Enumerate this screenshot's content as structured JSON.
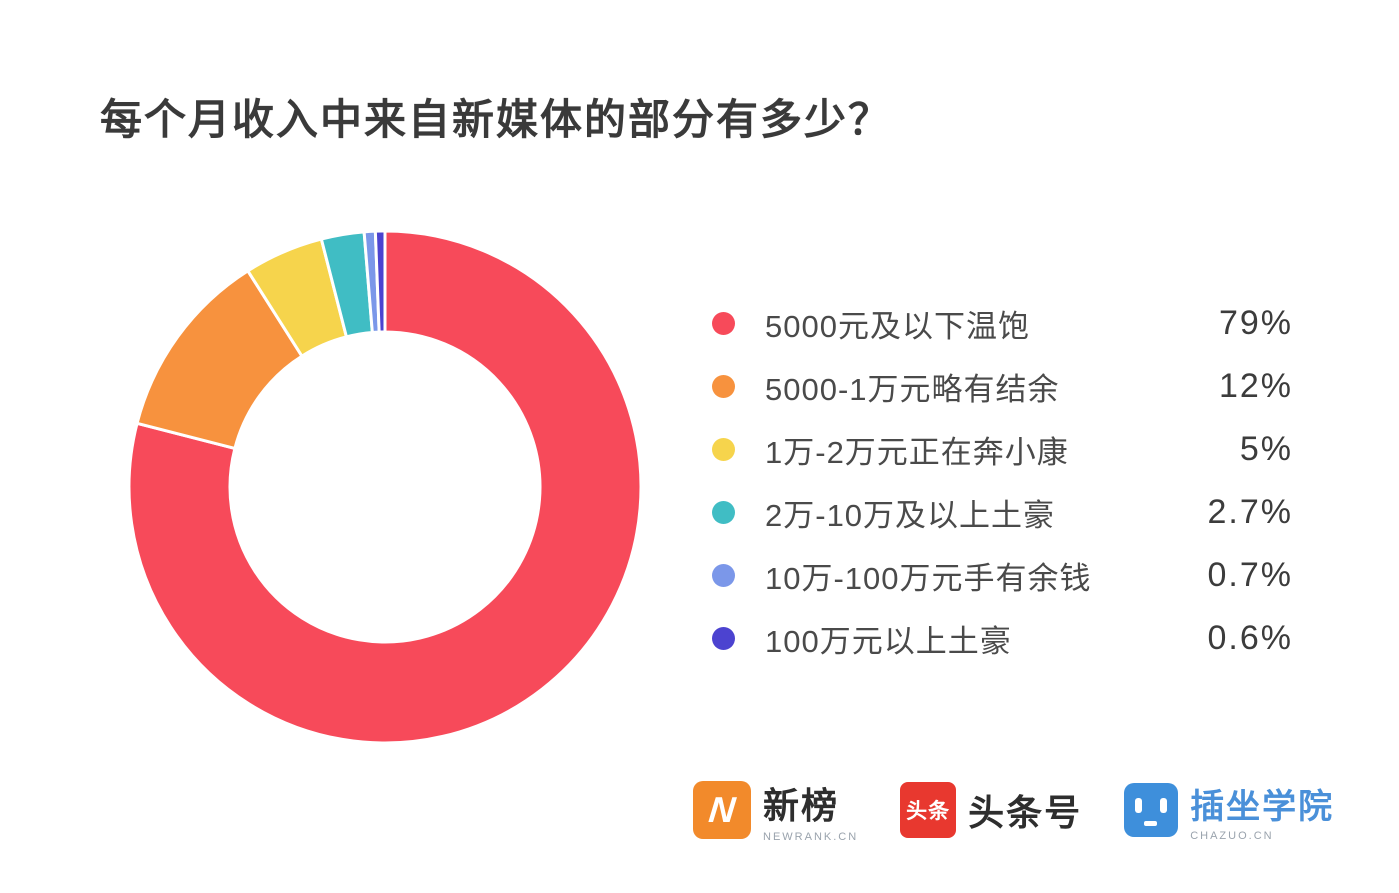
{
  "title": "每个月收入中来自新媒体的部分有多少？",
  "chart_data": {
    "type": "pie",
    "variant": "donut",
    "title": "每个月收入中来自新媒体的部分有多少？",
    "start_angle": "top",
    "direction": "clockwise",
    "legend_position": "right",
    "total": 100,
    "items": [
      {
        "label": "5000元及以下温饱",
        "value": 79,
        "percent_label": "79%",
        "color": "#F74A5A"
      },
      {
        "label": "5000-1万元略有结余",
        "value": 12,
        "percent_label": "12%",
        "color": "#F7923E"
      },
      {
        "label": "1万-2万元正在奔小康",
        "value": 5,
        "percent_label": "5%",
        "color": "#F6D44C"
      },
      {
        "label": "2万-10万及以上土豪",
        "value": 2.7,
        "percent_label": "2.7%",
        "color": "#40BDC4"
      },
      {
        "label": "10万-100万元手有余钱",
        "value": 0.7,
        "percent_label": "0.7%",
        "color": "#7B97E9"
      },
      {
        "label": "100万元以上土豪",
        "value": 0.6,
        "percent_label": "0.6%",
        "color": "#4C43D0"
      }
    ]
  },
  "footer": {
    "logos": [
      {
        "name": "新榜",
        "subtext": "NEWRANK.CN",
        "icon": "newrank-n-icon",
        "icon_color": "#F28A2B",
        "icon_glyph": "N"
      },
      {
        "name": "头条号",
        "subtext": "",
        "icon": "toutiao-icon",
        "icon_color": "#E8382F",
        "icon_glyph": "头条"
      },
      {
        "name": "插坐学院",
        "subtext": "CHAZUO.CN",
        "icon": "chazuo-robot-icon",
        "icon_color": "#3E8FDB",
        "icon_glyph": ""
      }
    ]
  }
}
